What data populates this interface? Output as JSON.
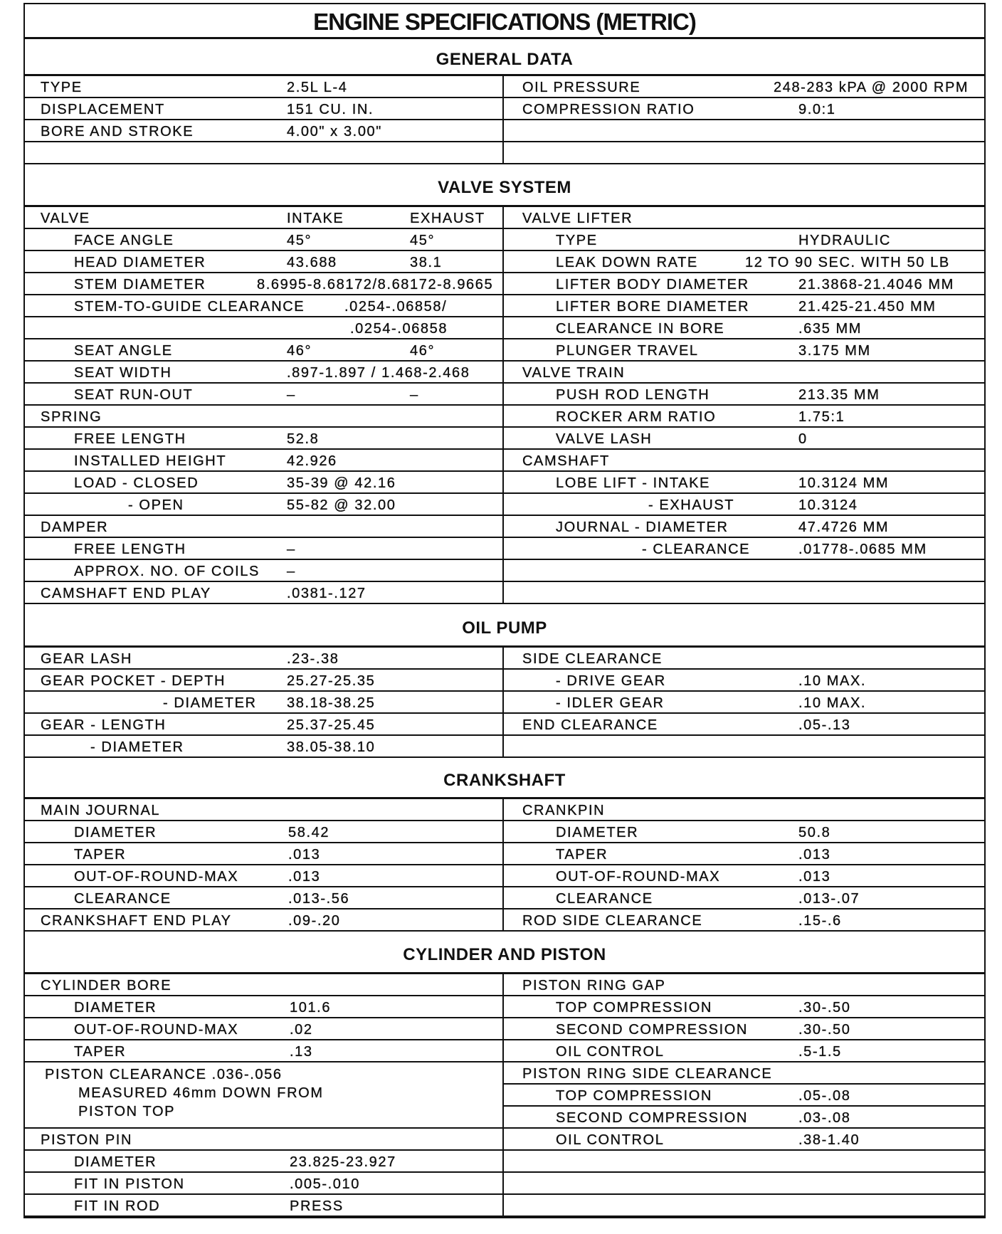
{
  "title": "ENGINE SPECIFICATIONS (METRIC)",
  "sections": {
    "general": {
      "header": "GENERAL DATA",
      "left": [
        {
          "label": "TYPE",
          "value": "2.5L  L-4"
        },
        {
          "label": "DISPLACEMENT",
          "value": "151 CU. IN."
        },
        {
          "label": "BORE AND STROKE",
          "value": "4.00\" x 3.00\""
        },
        {}
      ],
      "right": [
        {
          "label": "OIL PRESSURE",
          "value": "248-283 kPA @ 2000 RPM"
        },
        {
          "label": "COMPRESSION RATIO",
          "value": "9.0:1"
        },
        {},
        {}
      ]
    },
    "valve": {
      "header": "VALVE SYSTEM",
      "left": [
        {
          "label": "VALVE",
          "value": "INTAKE",
          "value2": "EXHAUST"
        },
        {
          "label": "FACE ANGLE",
          "value": "45°",
          "value2": "45°"
        },
        {
          "label": "HEAD DIAMETER",
          "value": "43.688",
          "value2": "38.1"
        },
        {
          "label": "STEM DIAMETER",
          "value": "8.6995-8.68172/8.68172-8.9665"
        },
        {
          "label": "STEM-TO-GUIDE CLEARANCE",
          "value": ".0254-.06858/"
        },
        {
          "value": ".0254-.06858"
        },
        {
          "label": "SEAT ANGLE",
          "value": "46°",
          "value2": "46°"
        },
        {
          "label": "SEAT WIDTH",
          "value": ".897-1.897 / 1.468-2.468"
        },
        {
          "label": "SEAT RUN-OUT",
          "value": "–",
          "value2": "–"
        },
        {
          "label": "SPRING"
        },
        {
          "label": "FREE LENGTH",
          "value": "52.8"
        },
        {
          "label": "INSTALLED HEIGHT",
          "value": "42.926"
        },
        {
          "label": "LOAD - CLOSED",
          "value": "35-39 @ 42.16"
        },
        {
          "label": "- OPEN",
          "value": "55-82 @ 32.00"
        },
        {
          "label": "DAMPER"
        },
        {
          "label": "FREE LENGTH",
          "value": "–"
        },
        {
          "label": "APPROX. NO. OF COILS",
          "value": "–"
        },
        {
          "label": "CAMSHAFT END PLAY",
          "value": ".0381-.127"
        }
      ],
      "right": [
        {
          "label": "VALVE LIFTER"
        },
        {
          "label": "TYPE",
          "value": "HYDRAULIC"
        },
        {
          "label": "LEAK DOWN RATE",
          "value": "12 TO 90 SEC. WITH 50 LB"
        },
        {
          "label": "LIFTER BODY DIAMETER",
          "value": "21.3868-21.4046 MM"
        },
        {
          "label": "LIFTER BORE DIAMETER",
          "value": "21.425-21.450 MM"
        },
        {
          "label": "CLEARANCE IN BORE",
          "value": ".635 MM"
        },
        {
          "label": "PLUNGER TRAVEL",
          "value": "3.175 MM"
        },
        {
          "label": "VALVE TRAIN"
        },
        {
          "label": "PUSH ROD LENGTH",
          "value": "213.35 MM"
        },
        {
          "label": "ROCKER ARM RATIO",
          "value": "1.75:1"
        },
        {
          "label": "VALVE LASH",
          "value": "0"
        },
        {
          "label": "CAMSHAFT"
        },
        {
          "label": "LOBE LIFT - INTAKE",
          "value": "10.3124 MM"
        },
        {
          "label": "- EXHAUST",
          "value": "10.3124"
        },
        {
          "label": "JOURNAL - DIAMETER",
          "value": "47.4726 MM"
        },
        {
          "label": "- CLEARANCE",
          "value": ".01778-.0685 MM"
        },
        {},
        {}
      ]
    },
    "oil": {
      "header": "OIL PUMP",
      "left": [
        {
          "label": "GEAR LASH",
          "value": ".23-.38"
        },
        {
          "label": "GEAR POCKET - DEPTH",
          "value": "25.27-25.35"
        },
        {
          "label": "- DIAMETER",
          "value": "38.18-38.25"
        },
        {
          "label": "GEAR - LENGTH",
          "value": "25.37-25.45"
        },
        {
          "label": "- DIAMETER",
          "value": "38.05-38.10"
        }
      ],
      "right": [
        {
          "label": "SIDE CLEARANCE"
        },
        {
          "label": "- DRIVE GEAR",
          "value": ".10 MAX."
        },
        {
          "label": "- IDLER GEAR",
          "value": ".10 MAX."
        },
        {
          "label": "END CLEARANCE",
          "value": ".05-.13"
        },
        {}
      ]
    },
    "crank": {
      "header": "CRANKSHAFT",
      "left": [
        {
          "label": "MAIN JOURNAL"
        },
        {
          "label": "DIAMETER",
          "value": "58.42"
        },
        {
          "label": "TAPER",
          "value": ".013"
        },
        {
          "label": "OUT-OF-ROUND-MAX",
          "value": ".013"
        },
        {
          "label": "CLEARANCE",
          "value": ".013-.56"
        },
        {
          "label": "CRANKSHAFT END PLAY",
          "value": ".09-.20"
        }
      ],
      "right": [
        {
          "label": "CRANKPIN"
        },
        {
          "label": "DIAMETER",
          "value": "50.8"
        },
        {
          "label": "TAPER",
          "value": ".013"
        },
        {
          "label": "OUT-OF-ROUND-MAX",
          "value": ".013"
        },
        {
          "label": "CLEARANCE",
          "value": ".013-.07"
        },
        {
          "label": "ROD SIDE CLEARANCE",
          "value": ".15-.6"
        }
      ]
    },
    "cylinder": {
      "header": "CYLINDER AND PISTON",
      "left": [
        {
          "label": "CYLINDER BORE"
        },
        {
          "label": "DIAMETER",
          "value": "101.6"
        },
        {
          "label": "OUT-OF-ROUND-MAX",
          "value": ".02"
        },
        {
          "label": "TAPER",
          "value": ".13"
        },
        {
          "lines": [
            "PISTON CLEARANCE .036-.056",
            "MEASURED 46mm DOWN FROM",
            "PISTON TOP"
          ]
        },
        {
          "label": "PISTON PIN"
        },
        {
          "label": "DIAMETER",
          "value": "23.825-23.927"
        },
        {
          "label": "FIT IN PISTON",
          "value": ".005-.010"
        },
        {
          "label": "FIT IN ROD",
          "value": "PRESS"
        }
      ],
      "right": [
        {
          "label": "PISTON RING GAP"
        },
        {
          "label": "TOP COMPRESSION",
          "value": ".30-.50"
        },
        {
          "label": "SECOND COMPRESSION",
          "value": ".30-.50"
        },
        {
          "label": "OIL CONTROL",
          "value": ".5-1.5"
        },
        {
          "label": "PISTON RING SIDE CLEARANCE"
        },
        {
          "label": "TOP COMPRESSION",
          "value": ".05-.08"
        },
        {
          "label": "SECOND COMPRESSION",
          "value": ".03-.08"
        },
        {
          "label": "OIL CONTROL",
          "value": ".38-1.40"
        },
        {},
        {},
        {}
      ]
    }
  }
}
